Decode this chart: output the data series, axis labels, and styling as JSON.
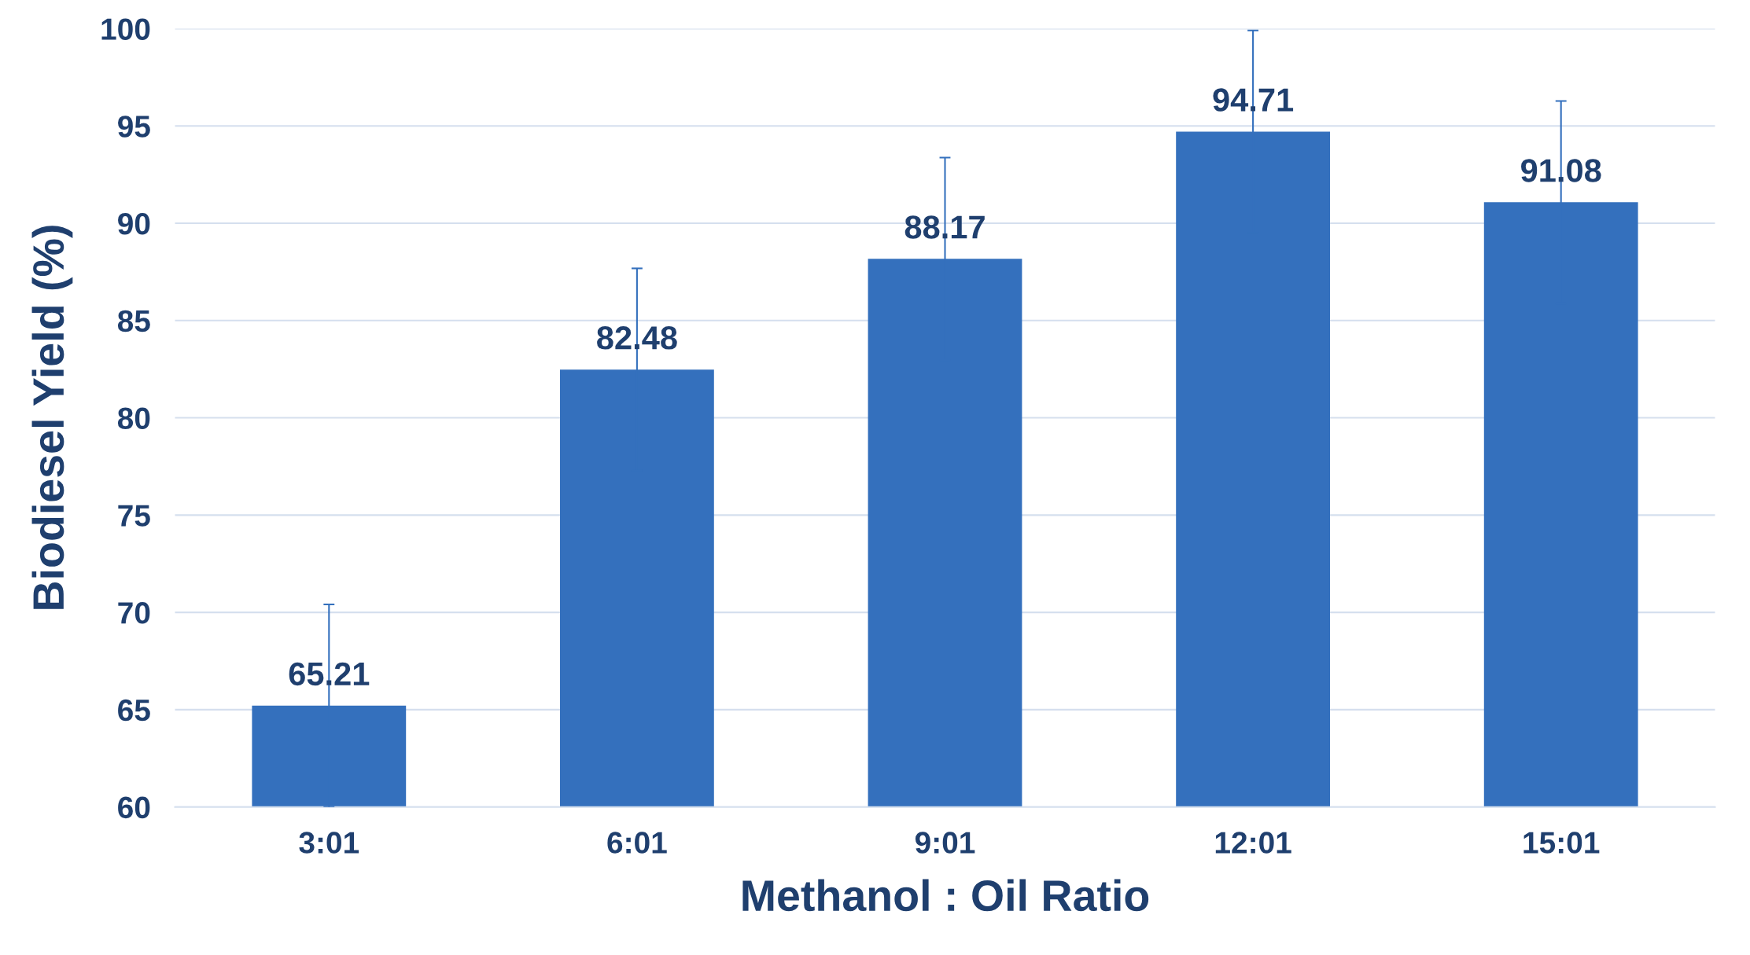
{
  "chart_data": {
    "type": "bar",
    "xlabel": "Methanol : Oil Ratio",
    "ylabel": "Biodiesel Yield (%)",
    "categories": [
      "3:01",
      "6:01",
      "9:01",
      "12:01",
      "15:01"
    ],
    "values": [
      65.21,
      82.48,
      88.17,
      94.71,
      91.08
    ],
    "errors": [
      5.2,
      5.2,
      5.2,
      5.2,
      5.2
    ],
    "color": "#3470bd",
    "ylim": [
      60,
      100
    ],
    "yticks": [
      60,
      65,
      70,
      75,
      80,
      85,
      90,
      95,
      100
    ],
    "grid": "y",
    "data_labels": true
  }
}
